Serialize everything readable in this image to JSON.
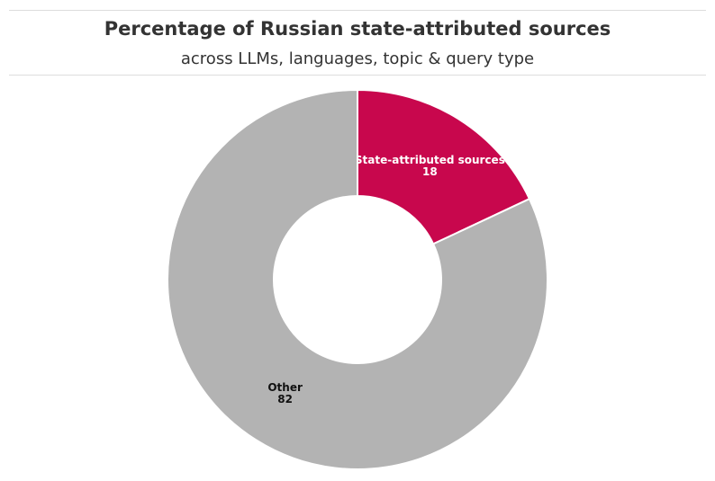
{
  "chart_data": {
    "type": "donut",
    "title": "Percentage of Russian state-attributed sources",
    "subtitle": "across LLMs, languages, topic & query type",
    "categories": [
      "State-attributed sources",
      "Other"
    ],
    "values": [
      18,
      82
    ],
    "colors": [
      "#c8074d",
      "#b3b3b3"
    ]
  }
}
